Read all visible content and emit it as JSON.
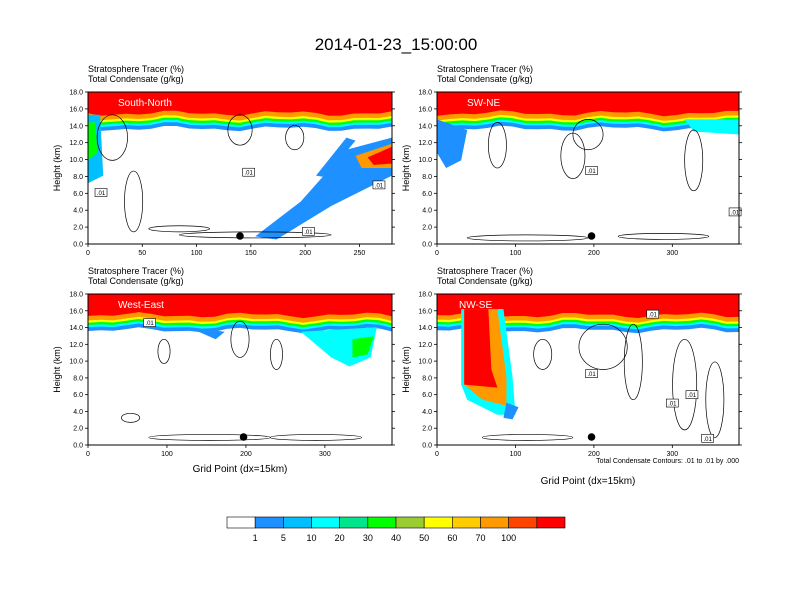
{
  "figure_title": "2014-01-23_15:00:00",
  "colors": {
    "levels": [
      "#ffffff",
      "#1e90ff",
      "#00bfff",
      "#00ffff",
      "#00e58c",
      "#00ff00",
      "#9acd32",
      "#ffff00",
      "#ffcc00",
      "#ff9900",
      "#ff4400",
      "#ff0000"
    ],
    "contour": "#000000",
    "frame": "#000000"
  },
  "chart_data": [
    {
      "type": "heatmap",
      "panel": "top-left",
      "label": "South-North",
      "title_line1": "Stratosphere Tracer   (%)",
      "title_line2": "Total Condensate   (g/kg)",
      "ylabel": "Height (km)",
      "xlabel": "",
      "xlim": [
        0,
        280
      ],
      "ylim": [
        0,
        18
      ],
      "xticks": [
        0,
        50,
        100,
        150,
        200,
        250
      ],
      "yticks": [
        "0.0",
        "2.0",
        "4.0",
        "6.0",
        "8.0",
        "10.0",
        "12.0",
        "14.0",
        "16.0",
        "18.0"
      ],
      "marker_x": 140,
      "contour_labels": [
        {
          "text": ".01",
          "x": 12,
          "y": 6.1
        },
        {
          "text": ".01",
          "x": 148,
          "y": 8.5
        },
        {
          "text": ".01",
          "x": 268,
          "y": 7.0
        },
        {
          "text": ".01",
          "x": 203,
          "y": 1.5
        }
      ]
    },
    {
      "type": "heatmap",
      "panel": "top-right",
      "label": "SW-NE",
      "title_line1": "Stratosphere Tracer   (%)",
      "title_line2": "Total Condensate   (g/kg)",
      "ylabel": "Height (km)",
      "xlabel": "",
      "xlim": [
        0,
        385
      ],
      "ylim": [
        0,
        18
      ],
      "xticks": [
        0,
        100,
        200,
        300
      ],
      "yticks": [
        "0.0",
        "2.0",
        "4.0",
        "6.0",
        "8.0",
        "10.0",
        "12.0",
        "14.0",
        "16.0",
        "18.0"
      ],
      "marker_x": 197,
      "contour_labels": [
        {
          "text": ".01",
          "x": 197,
          "y": 8.7
        },
        {
          "text": ".01",
          "x": 380,
          "y": 3.8
        }
      ]
    },
    {
      "type": "heatmap",
      "panel": "bottom-left",
      "label": "West-East",
      "title_line1": "Stratosphere Tracer   (%)",
      "title_line2": "Total Condensate   (g/kg)",
      "ylabel": "Height (km)",
      "xlabel": "Grid Point (dx=15km)",
      "xlim": [
        0,
        385
      ],
      "ylim": [
        0,
        18
      ],
      "xticks": [
        0,
        100,
        200,
        300
      ],
      "yticks": [
        "0.0",
        "2.0",
        "4.0",
        "6.0",
        "8.0",
        "10.0",
        "12.0",
        "14.0",
        "16.0",
        "18.0"
      ],
      "marker_x": 197,
      "contour_labels": [
        {
          "text": ".01",
          "x": 78,
          "y": 14.6
        }
      ]
    },
    {
      "type": "heatmap",
      "panel": "bottom-right",
      "label": "NW-SE",
      "title_line1": "Stratosphere Tracer   (%)",
      "title_line2": "Total Condensate   (g/kg)",
      "ylabel": "Height (km)",
      "xlabel": "Grid Point (dx=15km)",
      "footnote": "Total Condensate Contours: .01 to .01 by .000",
      "xlim": [
        0,
        385
      ],
      "ylim": [
        0,
        18
      ],
      "xticks": [
        0,
        100,
        200,
        300
      ],
      "yticks": [
        "0.0",
        "2.0",
        "4.0",
        "6.0",
        "8.0",
        "10.0",
        "12.0",
        "14.0",
        "16.0",
        "18.0"
      ],
      "marker_x": 197,
      "contour_labels": [
        {
          "text": ".01",
          "x": 275,
          "y": 15.6
        },
        {
          "text": ".01",
          "x": 197,
          "y": 8.5
        },
        {
          "text": ".01",
          "x": 300,
          "y": 5.0
        },
        {
          "text": ".01",
          "x": 325,
          "y": 6.0
        },
        {
          "text": ".01",
          "x": 345,
          "y": 0.8
        }
      ]
    }
  ],
  "colorbar": {
    "tick_labels": [
      "1",
      "5",
      "10",
      "20",
      "30",
      "40",
      "50",
      "60",
      "70",
      "100"
    ]
  }
}
